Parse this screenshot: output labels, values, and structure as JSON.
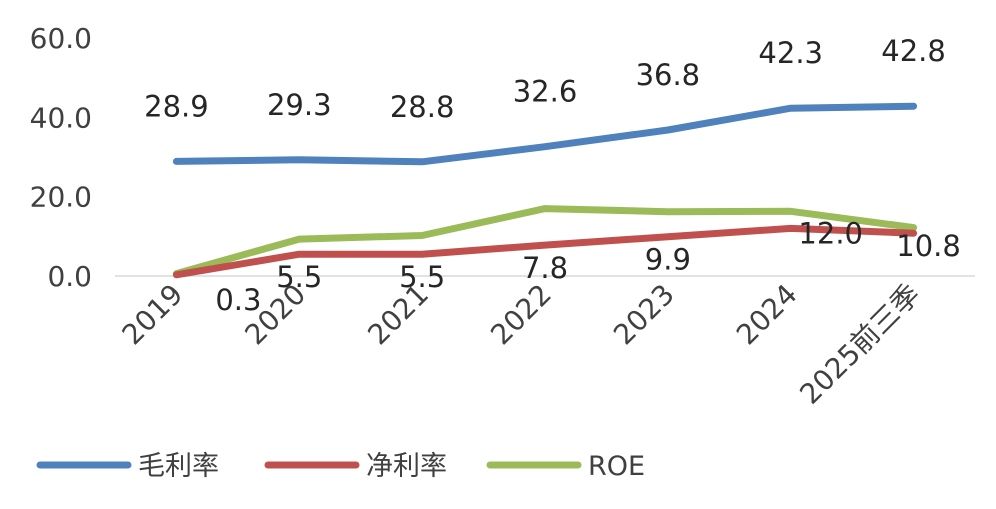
{
  "chart_data": {
    "type": "line",
    "categories": [
      "2019",
      "2020",
      "2021",
      "2022",
      "2023",
      "2024",
      "2025前三季"
    ],
    "ylim": [
      0,
      60
    ],
    "yticks": [
      "0.0",
      "20.0",
      "40.0",
      "60.0"
    ],
    "grid": false,
    "legend_position": "bottom",
    "series": [
      {
        "name": "毛利率",
        "color": "#4F81BD",
        "values": [
          28.9,
          29.3,
          28.8,
          32.6,
          36.8,
          42.3,
          42.8
        ],
        "labels": [
          "28.9",
          "29.3",
          "28.8",
          "32.6",
          "36.8",
          "42.3",
          "42.8"
        ]
      },
      {
        "name": "净利率",
        "color": "#C0504D",
        "values": [
          0.3,
          5.5,
          5.5,
          7.8,
          9.9,
          12.0,
          10.8
        ],
        "labels": [
          "0.3",
          "5.5",
          "5.5",
          "7.8",
          "9.9",
          "12.0",
          "10.8"
        ]
      },
      {
        "name": "ROE",
        "color": "#9BBB59",
        "values": [
          0.6,
          9.3,
          10.2,
          17.0,
          16.2,
          16.3,
          12.2
        ]
      }
    ]
  }
}
